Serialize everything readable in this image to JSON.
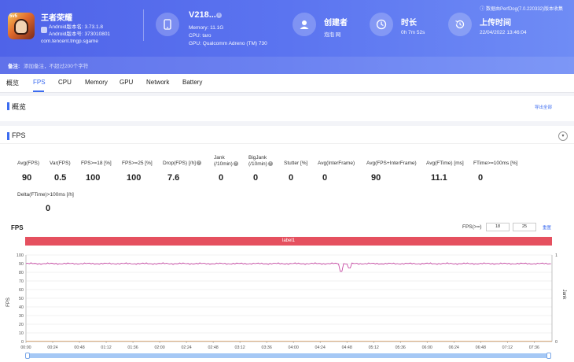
{
  "header": {
    "app": {
      "name": "王者荣耀",
      "icon_tag": "5v5",
      "android_version_label": "Android版本名: 3.73.1.8",
      "android_code_label": "Android版本号: 373010801",
      "package": "com.tencent.tmgp.sgame"
    },
    "device": {
      "name": "V218...",
      "memory": "Memory: 11.1G",
      "cpu": "CPU: taro",
      "gpu": "GPU: Qualcomm Adreno (TM) 730"
    },
    "creator": {
      "label": "创建者",
      "value": "泡泡 网"
    },
    "duration": {
      "label": "时长",
      "value": "0h 7m 52s"
    },
    "upload": {
      "label": "上传时间",
      "value": "22/04/2022 13:46:04"
    },
    "source": "数据由PerfDog(7.0.220332)版本收集",
    "note": {
      "label": "备注:",
      "placeholder": "添加备注，不超过200个字符"
    }
  },
  "tabs": [
    "概览",
    "FPS",
    "CPU",
    "Memory",
    "GPU",
    "Network",
    "Battery"
  ],
  "active_tab": "FPS",
  "overview": {
    "title": "概览",
    "export": "导出全部"
  },
  "fps_section": {
    "title": "FPS",
    "metrics": [
      {
        "label": "Avg(FPS)",
        "value": "90"
      },
      {
        "label": "Var(FPS)",
        "value": "0.5"
      },
      {
        "label": "FPS>=18 [%]",
        "value": "100"
      },
      {
        "label": "FPS>=25 [%]",
        "value": "100"
      },
      {
        "label": "Drop(FPS) [/h]",
        "value": "7.6"
      },
      {
        "label": "Jank\n(/10min)",
        "value": "0"
      },
      {
        "label": "BigJank\n(/10min)",
        "value": "0"
      },
      {
        "label": "Stutter [%]",
        "value": "0"
      },
      {
        "label": "Avg(InterFrame)",
        "value": "0"
      },
      {
        "label": "Avg(FPS+InterFrame)",
        "value": "90"
      },
      {
        "label": "Avg(FTime) [ms]",
        "value": "11.1"
      },
      {
        "label": "FTime>=100ms [%]",
        "value": "0"
      },
      {
        "label": "Delta(FTime)>100ms [/h]",
        "value": "0"
      }
    ]
  },
  "chart_panel": {
    "title": "FPS",
    "fps_filter_label": "FPS(>=)",
    "fps_filter_values": [
      "18",
      "25"
    ],
    "reset": "重置",
    "label_bar": "label1"
  },
  "chart_data": {
    "type": "line",
    "ylabel": "FPS",
    "y2label": "Jank",
    "ylim": [
      0,
      100
    ],
    "yticks": [
      0,
      10,
      20,
      30,
      40,
      50,
      60,
      70,
      80,
      90,
      100
    ],
    "y2lim": [
      0,
      1
    ],
    "y2ticks": [
      0,
      1
    ],
    "xticks": [
      "00:00",
      "00:24",
      "00:48",
      "01:12",
      "01:36",
      "02:00",
      "02:24",
      "02:48",
      "03:12",
      "03:36",
      "04:00",
      "04:24",
      "04:48",
      "05:12",
      "05:36",
      "06:00",
      "06:24",
      "06:48",
      "07:12",
      "07:36"
    ],
    "x_range_s": [
      0,
      472
    ],
    "series": [
      {
        "name": "FPS",
        "color": "#c0369a",
        "baseline": 90,
        "dips": [
          {
            "t": 283,
            "v": 81
          },
          {
            "t": 290,
            "v": 85
          }
        ]
      }
    ]
  },
  "colors": {
    "accent": "#3c6cf0",
    "label_bar": "#e5505f",
    "line": "#c0369a",
    "header": "#5b74f0"
  }
}
